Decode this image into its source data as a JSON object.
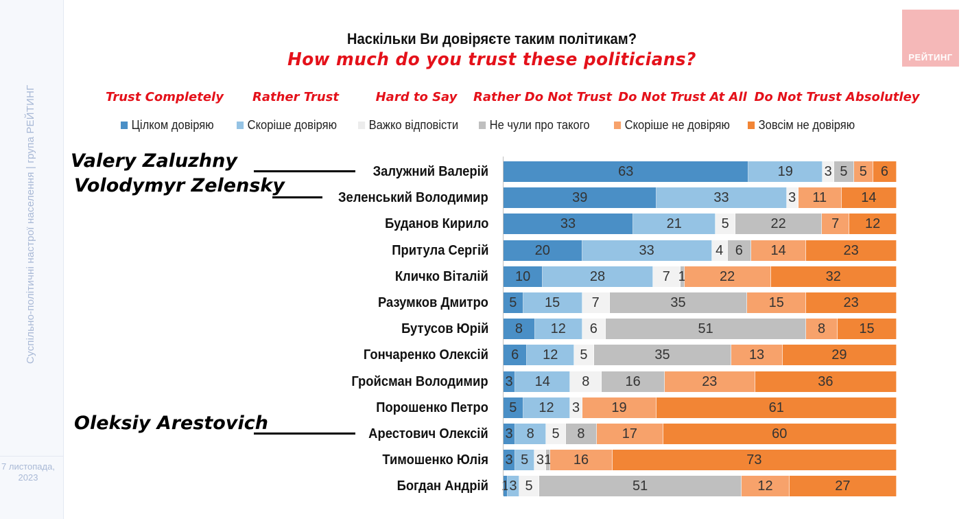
{
  "side_text": "Суспільно-політичні настрої населення | група РЕЙТИНГ",
  "date_text": "7 листопада,\n2023",
  "logo_text": "РЕЙТИНГ",
  "title_ua": "Наскільки Ви довіряєте таким політикам?",
  "title_en": "How much do you trust these politicians?",
  "english_labels": [
    {
      "text": "Trust Completely",
      "center_x": 240
    },
    {
      "text": "Rather Trust",
      "center_x": 431
    },
    {
      "text": "Hard to Say",
      "center_x": 607
    },
    {
      "text": "Rather Do Not Trust",
      "center_x": 791
    },
    {
      "text": "Do Not Trust At All",
      "center_x": 995
    },
    {
      "text": "Do Not Trust Absolutley",
      "center_x": 1220
    }
  ],
  "callouts": [
    {
      "text": "Valery Zaluzhny",
      "row": 0
    },
    {
      "text": "Volodymyr Zelensky",
      "row": 1
    },
    {
      "text": "Oleksiy Arestovich",
      "row": 10
    }
  ],
  "chart_data": {
    "type": "bar",
    "orientation": "horizontal",
    "stacked": true,
    "categories": [
      "Залужний Валерій",
      "Зеленський Володимир",
      "Буданов Кирило",
      "Притула Сергій",
      "Кличко Віталій",
      "Разумков Дмитро",
      "Бутусов Юрій",
      "Гончаренко Олексій",
      "Гройсман Володимир",
      "Порошенко Петро",
      "Арестович Олексій",
      "Тимошенко Юлія",
      "Богдан Андрій"
    ],
    "series": [
      {
        "name": "Цілком довіряю",
        "color": "#4a8fc6",
        "values": [
          63,
          39,
          33,
          20,
          10,
          5,
          8,
          6,
          3,
          5,
          3,
          3,
          1
        ]
      },
      {
        "name": "Скоріше довіряю",
        "color": "#95c3e4",
        "values": [
          19,
          33,
          21,
          33,
          28,
          15,
          12,
          12,
          14,
          12,
          8,
          5,
          3
        ]
      },
      {
        "name": "Важко відповісти",
        "color": "#f2f2f2",
        "values": [
          3,
          3,
          5,
          4,
          7,
          7,
          6,
          5,
          8,
          3,
          5,
          3,
          5
        ]
      },
      {
        "name": "Не чули про такого",
        "color": "#bfbfbf",
        "values": [
          5,
          0,
          22,
          6,
          1,
          35,
          51,
          35,
          16,
          0,
          8,
          1,
          51
        ]
      },
      {
        "name": "Скоріше не довіряю",
        "color": "#f7a26b",
        "values": [
          5,
          11,
          7,
          14,
          22,
          15,
          8,
          13,
          23,
          19,
          17,
          16,
          12
        ]
      },
      {
        "name": "Зовсім не довіряю",
        "color": "#f28535",
        "values": [
          6,
          14,
          12,
          23,
          32,
          23,
          15,
          29,
          36,
          61,
          60,
          73,
          27
        ]
      }
    ],
    "xlim": [
      0,
      100
    ],
    "legend_position": "top",
    "grid": false
  }
}
